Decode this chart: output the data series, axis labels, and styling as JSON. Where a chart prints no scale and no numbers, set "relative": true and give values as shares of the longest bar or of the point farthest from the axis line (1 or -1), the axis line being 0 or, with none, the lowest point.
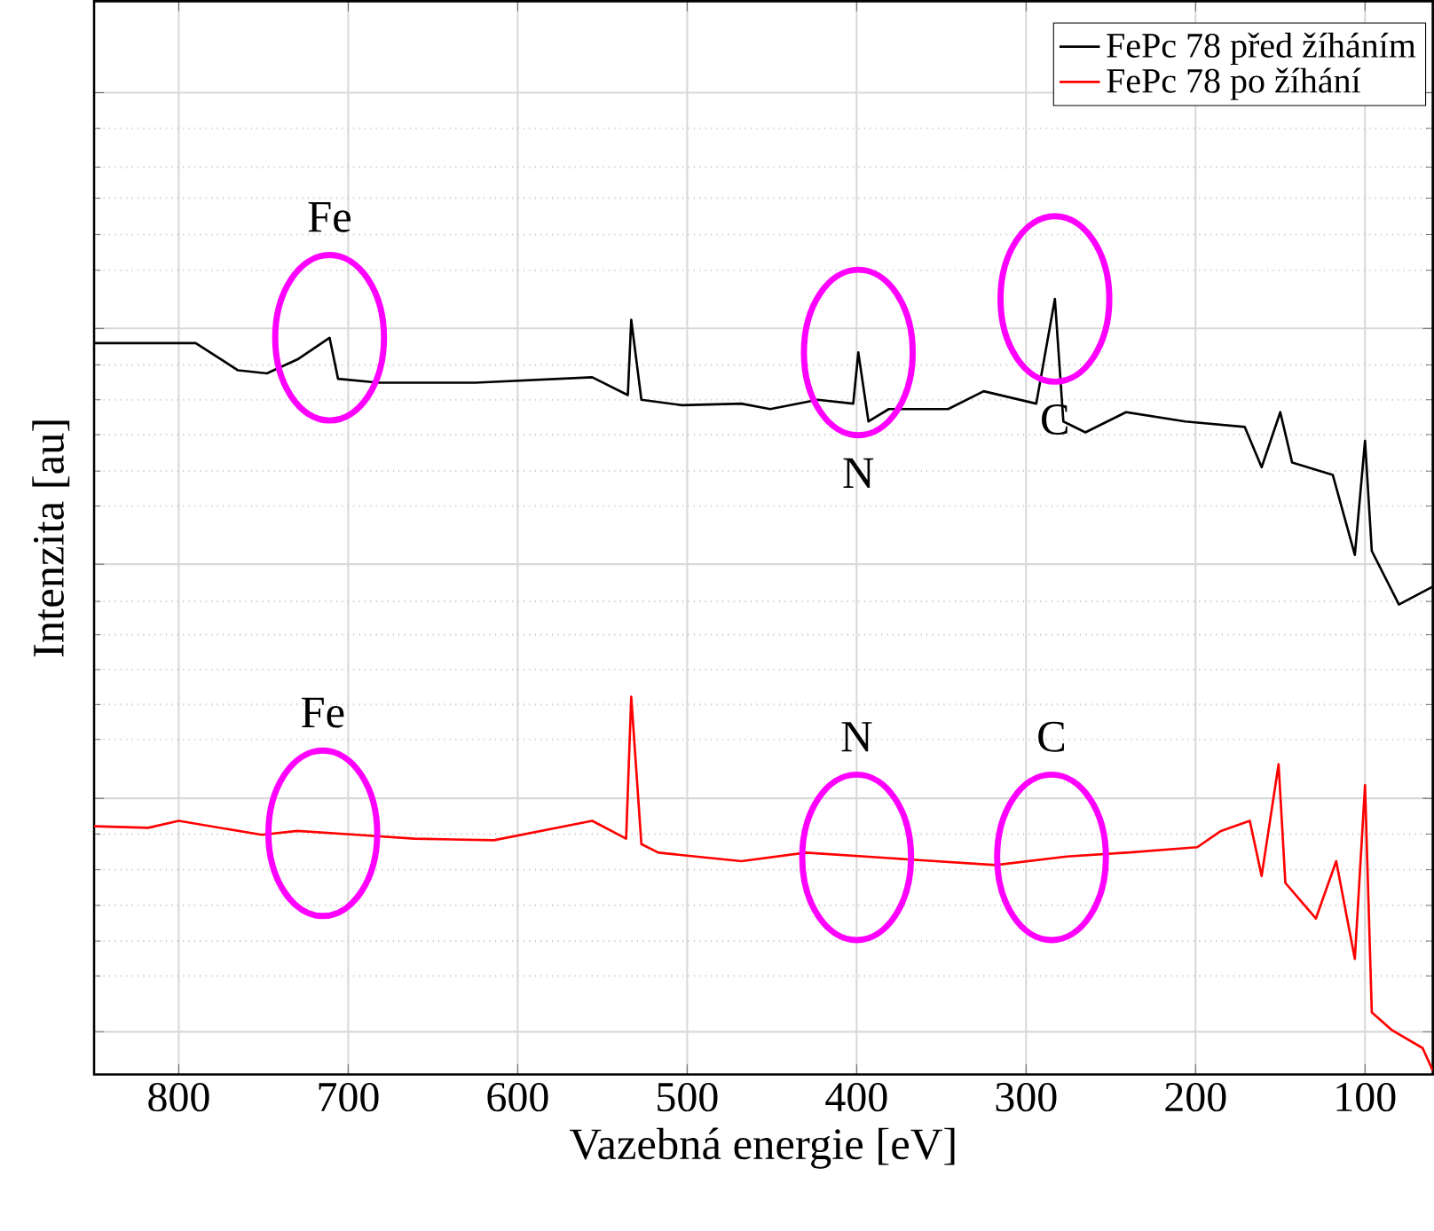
{
  "chart_data": {
    "type": "line",
    "xlabel": "Vazebná energie [eV]",
    "ylabel": "Intenzita [au]",
    "relative": true,
    "xlim": [
      850,
      60
    ],
    "xticks": [
      800,
      700,
      600,
      500,
      400,
      300,
      200,
      100
    ],
    "grid": true,
    "legend": "top right",
    "series": [
      {
        "name": "FePc 78 před žíháním",
        "color": "#000000",
        "x": [
          850,
          790,
          765,
          748,
          730,
          711,
          706,
          682,
          625,
          556,
          535,
          533,
          527,
          503,
          468,
          451,
          423,
          402,
          399,
          393,
          381,
          346,
          325,
          294,
          283,
          278,
          265,
          241,
          206,
          171,
          161,
          150,
          143,
          119,
          106,
          100,
          96,
          80,
          60
        ],
        "values": [
          0.943,
          0.943,
          0.908,
          0.904,
          0.922,
          0.95,
          0.897,
          0.892,
          0.892,
          0.899,
          0.876,
          0.973,
          0.87,
          0.863,
          0.865,
          0.858,
          0.87,
          0.865,
          0.931,
          0.842,
          0.858,
          0.858,
          0.881,
          0.865,
          1.0,
          0.842,
          0.828,
          0.854,
          0.842,
          0.835,
          0.783,
          0.854,
          0.789,
          0.773,
          0.67,
          0.817,
          0.675,
          0.606,
          0.629
        ]
      },
      {
        "name": "FePc 78 po žíhání",
        "color": "#ff0000",
        "x": [
          850,
          818,
          800,
          751,
          730,
          695,
          661,
          614,
          556,
          536,
          533,
          527,
          517,
          468,
          430,
          381,
          318,
          276,
          241,
          199,
          185,
          168,
          161,
          151,
          147,
          129,
          117,
          106,
          100,
          96,
          84,
          66,
          60
        ],
        "values": [
          0.32,
          0.318,
          0.327,
          0.309,
          0.314,
          0.309,
          0.304,
          0.302,
          0.327,
          0.304,
          0.487,
          0.297,
          0.286,
          0.275,
          0.286,
          0.279,
          0.27,
          0.281,
          0.286,
          0.293,
          0.314,
          0.327,
          0.256,
          0.4,
          0.247,
          0.201,
          0.275,
          0.149,
          0.373,
          0.08,
          0.057,
          0.034,
          0.005
        ]
      }
    ],
    "annotations": [
      {
        "text": "Fe",
        "x": 711,
        "y": 0.95
      },
      {
        "text": "N",
        "x": 399,
        "y": 0.931
      },
      {
        "text": "C",
        "x": 283,
        "y": 1.0
      },
      {
        "text": "Fe",
        "x": 715,
        "y": 0.311
      },
      {
        "text": "N",
        "x": 400,
        "y": 0.28
      },
      {
        "text": "C",
        "x": 285,
        "y": 0.28
      }
    ]
  }
}
